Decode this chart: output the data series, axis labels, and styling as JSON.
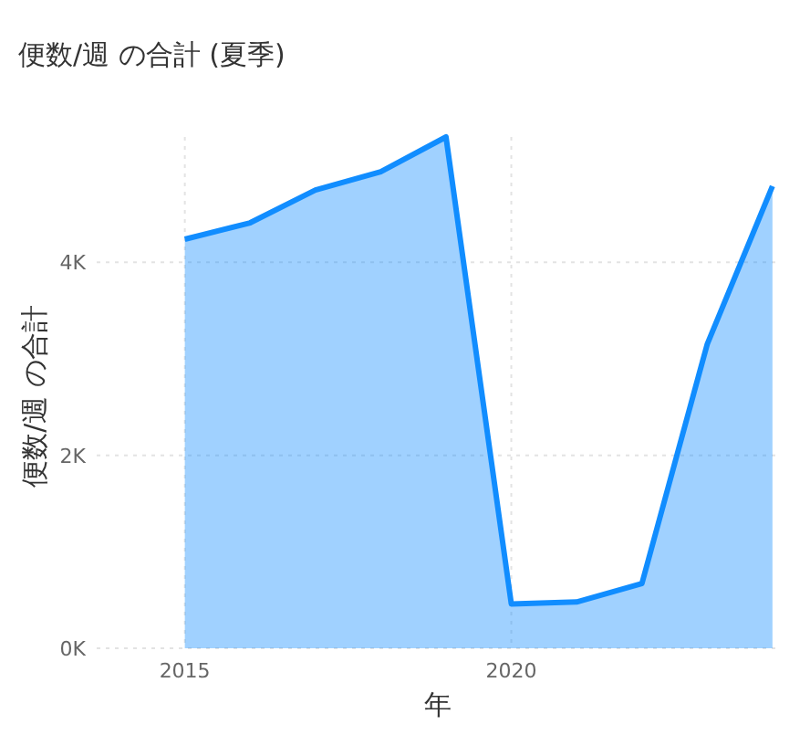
{
  "chart_data": {
    "type": "area",
    "title": "便数/週 の合計 (夏季)",
    "xlabel": "年",
    "ylabel": "便数/週 の合計",
    "x": [
      2015,
      2016,
      2017,
      2018,
      2019,
      2020,
      2021,
      2022,
      2023,
      2024
    ],
    "values": [
      4240,
      4410,
      4750,
      4940,
      5300,
      460,
      480,
      670,
      3150,
      4790
    ],
    "color": "#118dff",
    "xlim": [
      2013.65,
      2024.1
    ],
    "xticks": [
      2015,
      2020
    ],
    "ylim": [
      0,
      5300
    ],
    "yticks": [
      {
        "value": 0,
        "label": "0K"
      },
      {
        "value": 2000,
        "label": "2K"
      },
      {
        "value": 4000,
        "label": "4K"
      }
    ],
    "grid": true
  }
}
